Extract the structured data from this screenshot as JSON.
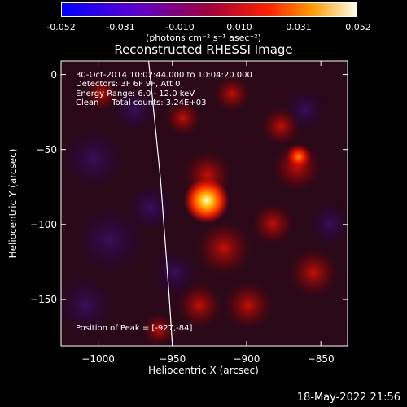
{
  "colorbar": {
    "tick_labels": [
      "-0.052",
      "-0.031",
      "-0.010",
      "0.010",
      "0.031",
      "0.052"
    ],
    "tick_values": [
      -0.052,
      -0.031,
      -0.01,
      0.01,
      0.031,
      0.052
    ],
    "range": [
      -0.052,
      0.052
    ],
    "unit_label": "(photons cm⁻² s⁻¹ asec⁻²)"
  },
  "chart_data": {
    "type": "heatmap",
    "title": "Reconstructed RHESSI Image",
    "xlabel": "Heliocentric X (arcsec)",
    "ylabel": "Heliocentric Y (arcsec)",
    "xlim": [
      -1025,
      -832
    ],
    "ylim": [
      -181,
      9
    ],
    "x_ticks": [
      -1000,
      -950,
      -900,
      -850
    ],
    "x_tick_labels": [
      "−1000",
      "−950",
      "−900",
      "−850"
    ],
    "y_ticks": [
      0,
      -50,
      -100,
      -150
    ],
    "y_tick_labels": [
      "0",
      "−50",
      "−100",
      "−150"
    ],
    "peak_position": [
      -927,
      -84
    ],
    "sources": [
      {
        "x": -927,
        "y": -84,
        "intensity": 0.052
      },
      {
        "x": -865,
        "y": -55,
        "intensity": 0.03
      }
    ],
    "limb_curve": [
      {
        "x": -966,
        "y": 9
      },
      {
        "x": -962,
        "y": -30
      },
      {
        "x": -958,
        "y": -70
      },
      {
        "x": -955,
        "y": -110
      },
      {
        "x": -952,
        "y": -150
      },
      {
        "x": -950,
        "y": -181
      }
    ]
  },
  "annotations": {
    "time_range": "30-Oct-2014 10:02:44.000 to 10:04:20.000",
    "detectors": "Detectors: 3F 6F 9F, Att 0",
    "energy_range": "Energy Range: 6.0 - 12.0 keV",
    "clean_counts": "Clean     Total counts: 3.24E+03",
    "peak_position_text": "Position of Peak = [-927,-84]"
  },
  "timestamp": "18-May-2022 21:56",
  "colors": {
    "background": "#000000",
    "text": "#ffffff",
    "limb": "#ffffff"
  }
}
